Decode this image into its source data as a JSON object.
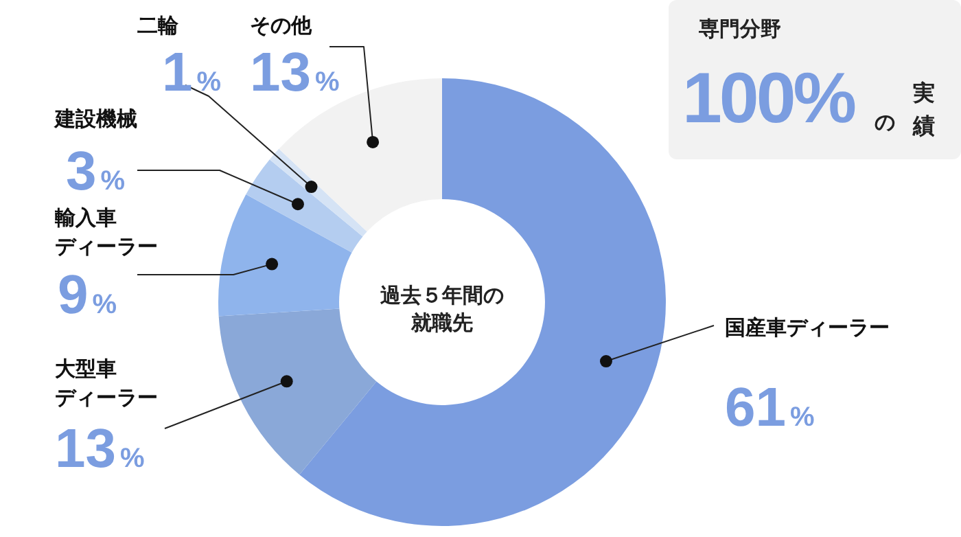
{
  "chart_data": {
    "type": "donut",
    "categories": [
      "国産車ディーラー",
      "大型車ディーラー",
      "輸入車ディーラー",
      "建設機械",
      "二輪",
      "その他"
    ],
    "values": [
      61,
      13,
      9,
      3,
      1,
      13
    ],
    "colors": [
      "#7b9de0",
      "#8aa8d8",
      "#8fb4ec",
      "#b4cdf0",
      "#d5e3f5",
      "#f2f2f2"
    ],
    "value_labels": [
      "61%",
      "13%",
      "9%",
      "3%",
      "1%",
      "13%"
    ],
    "legend": false,
    "annotations": [
      "過去５年間の就職先",
      "専門分野",
      "100%",
      "の",
      "実績"
    ]
  }
}
